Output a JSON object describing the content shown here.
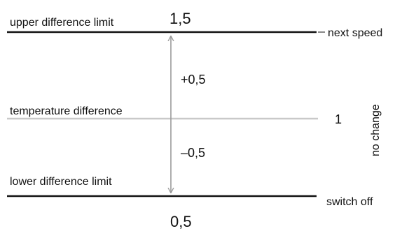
{
  "colors": {
    "limit_line": "#111111",
    "reference_line": "#c9c9c9",
    "arrow": "#9a9a9a",
    "text": "#111111"
  },
  "levels": {
    "upper": {
      "label": "upper difference limit",
      "value": "1,5",
      "outcome": "next speed"
    },
    "middle": {
      "label": "temperature difference",
      "value": "1",
      "outcome": "no change"
    },
    "lower": {
      "label": "lower difference limit",
      "value": "0,5",
      "outcome": "switch off"
    }
  },
  "offsets": {
    "plus": "+0,5",
    "minus": "–0,5"
  }
}
